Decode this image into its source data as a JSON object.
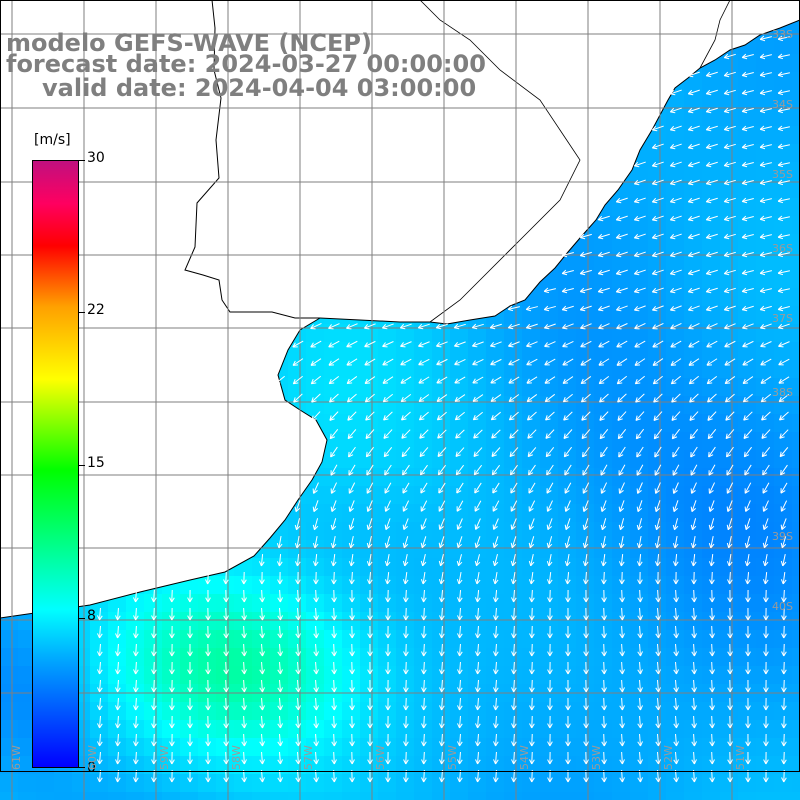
{
  "header": {
    "line1": "modelo GEFS-WAVE (NCEP)",
    "line2": "forecast date: 2024-03-27 00:00:00",
    "line3": "valid date: 2024-04-04 03:00:00"
  },
  "colorbar": {
    "unit": "[m/s]",
    "min": 0,
    "max": 30,
    "ticks": [
      "30",
      "22",
      "15",
      "8",
      "0"
    ],
    "tick_values": [
      30,
      22,
      15,
      8,
      0
    ],
    "colors": [
      "#0000ff",
      "#00a0ff",
      "#00ffff",
      "#00ff00",
      "#ffff00",
      "#ffa000",
      "#ff0000",
      "#c0107f"
    ]
  },
  "map": {
    "variable": "wind speed and direction",
    "land_color": "#ffffff",
    "coast_color": "#000000",
    "grid_color": "#7f7f7f",
    "lat_labels": [
      "33S",
      "34S",
      "35S",
      "36S",
      "37S",
      "38S",
      "39S",
      "40S"
    ],
    "lon_labels": [
      "61W",
      "60W",
      "59W",
      "58W",
      "57W",
      "56W",
      "55W",
      "54W",
      "53W",
      "52W",
      "51W"
    ]
  }
}
